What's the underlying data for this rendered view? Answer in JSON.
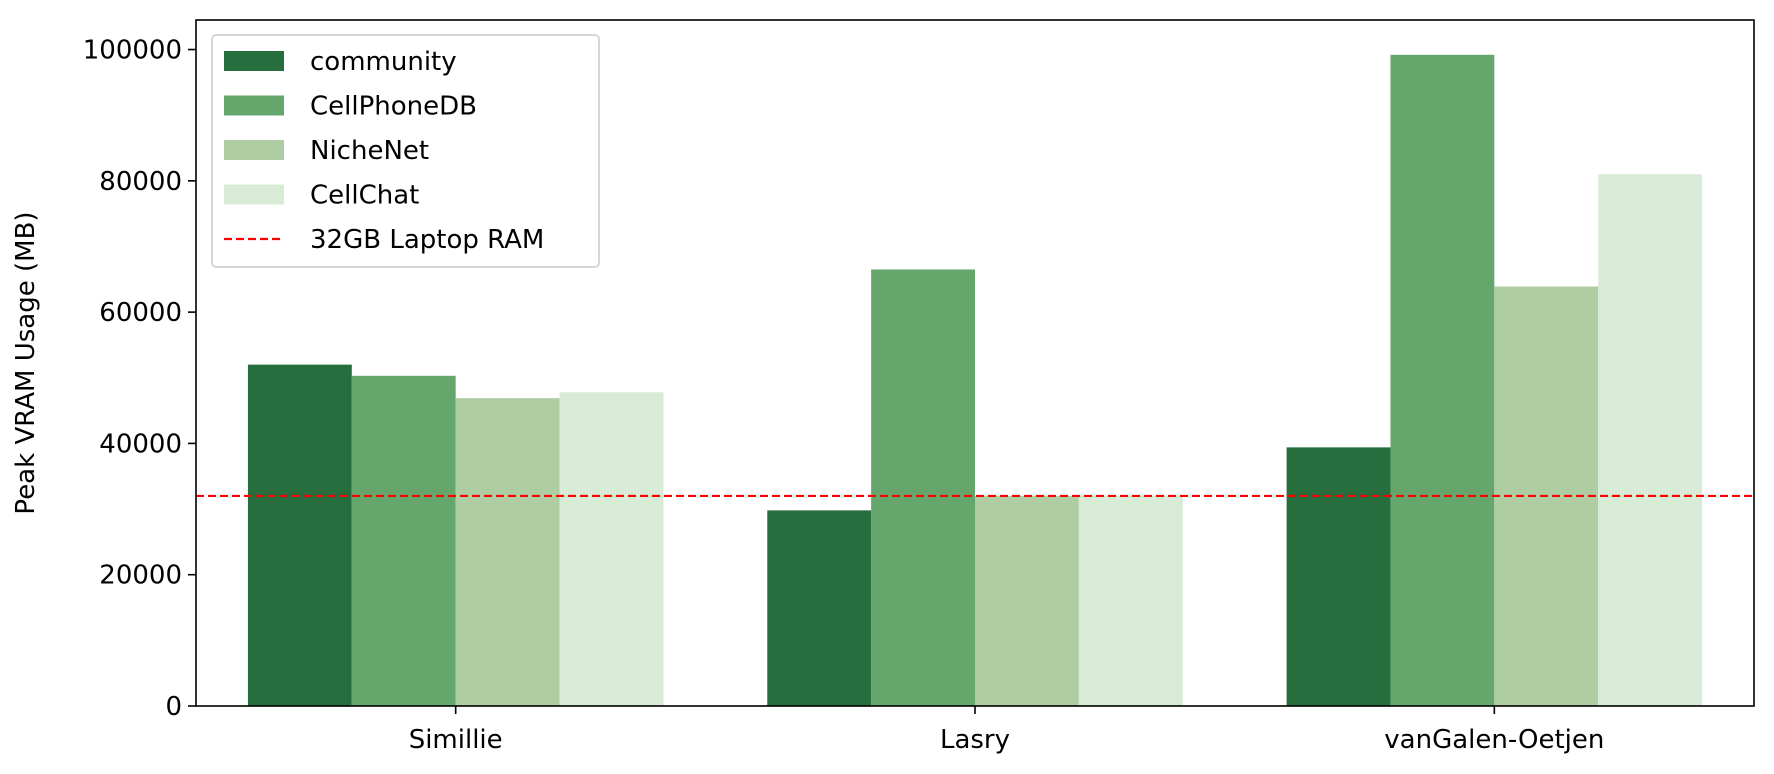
{
  "chart_data": {
    "type": "bar",
    "title": "",
    "xlabel": "",
    "ylabel": "Peak VRAM Usage (MB)",
    "categories": [
      "Simillie",
      "Lasry",
      "vanGalen-Oetjen"
    ],
    "ylim": [
      0,
      104500
    ],
    "yticks": [
      0,
      20000,
      40000,
      60000,
      80000,
      100000
    ],
    "series": [
      {
        "name": "community",
        "color": "#276e3e",
        "values": [
          52000,
          29800,
          39400
        ]
      },
      {
        "name": "CellPhoneDB",
        "color": "#64a66b",
        "values": [
          50300,
          66500,
          99200
        ]
      },
      {
        "name": "NicheNet",
        "color": "#aecda2",
        "values": [
          46900,
          32000,
          63900
        ]
      },
      {
        "name": "CellChat",
        "color": "#d8ebd6",
        "values": [
          47800,
          32000,
          81000
        ]
      }
    ],
    "reference_line": {
      "label": "32GB Laptop RAM",
      "value": 32000,
      "color": "#ff0000",
      "style": "dashed"
    },
    "legend": {
      "position": "top-left"
    },
    "grid": false
  }
}
